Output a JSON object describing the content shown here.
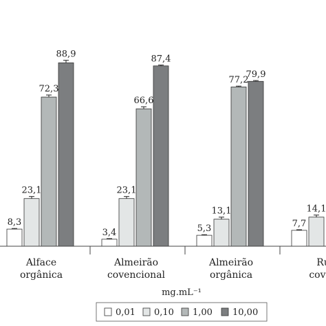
{
  "chart_data": {
    "type": "bar",
    "categories": [
      [
        "Alface",
        "orgânica"
      ],
      [
        "Almeirão",
        "covencional"
      ],
      [
        "Almeirão",
        "orgânica"
      ],
      [
        "Rúc",
        "covenc"
      ]
    ],
    "series": [
      {
        "name": "0,01",
        "color": "#ffffff",
        "values": [
          8.3,
          3.4,
          5.3,
          7.7
        ],
        "labels": [
          "8,3",
          "3,4",
          "5,3",
          "7,7"
        ]
      },
      {
        "name": "0,10",
        "color": "#e3e6e6",
        "values": [
          23.1,
          23.1,
          13.1,
          14.1
        ],
        "labels": [
          "23,1",
          "23,1",
          "13,1",
          "14,1"
        ]
      },
      {
        "name": "1,00",
        "color": "#b3b8b8",
        "values": [
          72.3,
          66.6,
          77.2,
          null
        ],
        "labels": [
          "72,3",
          "66,6",
          "77,2",
          ""
        ]
      },
      {
        "name": "10,00",
        "color": "#7c7e80",
        "values": [
          88.9,
          87.4,
          79.9,
          null
        ],
        "labels": [
          "88,9",
          "87,4",
          "79,9",
          ""
        ]
      }
    ],
    "errors": [
      [
        0.3,
        0.3,
        0.3,
        0.3
      ],
      [
        1.0,
        1.0,
        1.0,
        1.0
      ],
      [
        1.0,
        1.0,
        0.4,
        null
      ],
      [
        1.2,
        0.4,
        0.4,
        null
      ]
    ],
    "ylim": [
      0,
      100
    ],
    "legend_title": "mg.mL⁻¹",
    "legend_position": "bottom-center",
    "grid": false
  }
}
